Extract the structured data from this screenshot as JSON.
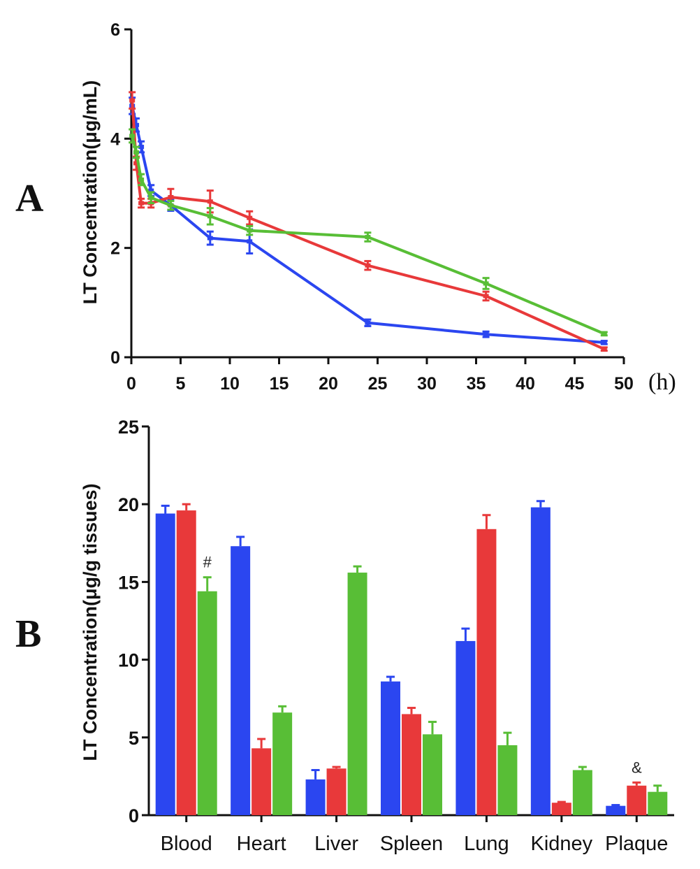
{
  "colors": {
    "blue": "#2b46f0",
    "red": "#e8393a",
    "green": "#58be36"
  },
  "panels": {
    "a": "A",
    "b": "B"
  },
  "chart_data": [
    {
      "type": "line",
      "panel": "A",
      "title": "",
      "xlabel": "(h)",
      "ylabel": "LT Concentration(μg/mL)",
      "xlim": [
        0,
        50
      ],
      "ylim": [
        0,
        6
      ],
      "xticks": [
        0,
        5,
        10,
        15,
        20,
        25,
        30,
        35,
        40,
        45,
        50
      ],
      "yticks": [
        0,
        2,
        4,
        6
      ],
      "grid": false,
      "series": [
        {
          "color": "blue",
          "x": [
            0.083,
            0.5,
            1,
            2,
            4,
            8,
            12,
            24,
            36,
            48
          ],
          "y": [
            4.6,
            4.25,
            3.85,
            3.05,
            2.78,
            2.18,
            2.12,
            0.63,
            0.42,
            0.27
          ],
          "err": [
            0.15,
            0.12,
            0.1,
            0.1,
            0.1,
            0.12,
            0.22,
            0.06,
            0.05,
            0.03
          ]
        },
        {
          "color": "red",
          "x": [
            0.083,
            0.5,
            1,
            2,
            4,
            8,
            12,
            24,
            36,
            48
          ],
          "y": [
            4.7,
            3.55,
            2.82,
            2.82,
            2.93,
            2.85,
            2.55,
            1.68,
            1.12,
            0.15
          ],
          "err": [
            0.15,
            0.12,
            0.08,
            0.08,
            0.15,
            0.2,
            0.12,
            0.08,
            0.08,
            0.03
          ]
        },
        {
          "color": "green",
          "x": [
            0.083,
            0.5,
            1,
            2,
            4,
            8,
            12,
            24,
            36,
            48
          ],
          "y": [
            4.05,
            3.75,
            3.25,
            2.92,
            2.78,
            2.58,
            2.32,
            2.2,
            1.35,
            0.43
          ],
          "err": [
            0.12,
            0.1,
            0.1,
            0.1,
            0.08,
            0.15,
            0.08,
            0.08,
            0.1,
            0.03
          ]
        }
      ]
    },
    {
      "type": "bar",
      "panel": "B",
      "title": "",
      "xlabel": "",
      "ylabel": "LT Concentration(μg/g tissues)",
      "ylim": [
        0,
        25
      ],
      "yticks": [
        0,
        5,
        10,
        15,
        20,
        25
      ],
      "grid": false,
      "categories": [
        "Blood",
        "Heart",
        "Liver",
        "Spleen",
        "Lung",
        "Kidney",
        "Plaque"
      ],
      "series": [
        {
          "color": "blue",
          "values": [
            19.4,
            17.3,
            2.3,
            8.6,
            11.2,
            19.8,
            0.6
          ],
          "err": [
            0.5,
            0.6,
            0.6,
            0.3,
            0.8,
            0.4,
            0.05
          ]
        },
        {
          "color": "red",
          "values": [
            19.6,
            4.3,
            3.0,
            6.5,
            18.4,
            0.8,
            1.9
          ],
          "err": [
            0.4,
            0.6,
            0.1,
            0.4,
            0.9,
            0.05,
            0.2
          ]
        },
        {
          "color": "green",
          "values": [
            14.4,
            6.6,
            15.6,
            5.2,
            4.5,
            2.9,
            1.5
          ],
          "err": [
            0.9,
            0.4,
            0.4,
            0.8,
            0.8,
            0.2,
            0.4
          ]
        }
      ],
      "annotations": [
        {
          "category": "Blood",
          "series": 2,
          "text": "#"
        },
        {
          "category": "Plaque",
          "series": 1,
          "text": "&"
        }
      ]
    }
  ]
}
